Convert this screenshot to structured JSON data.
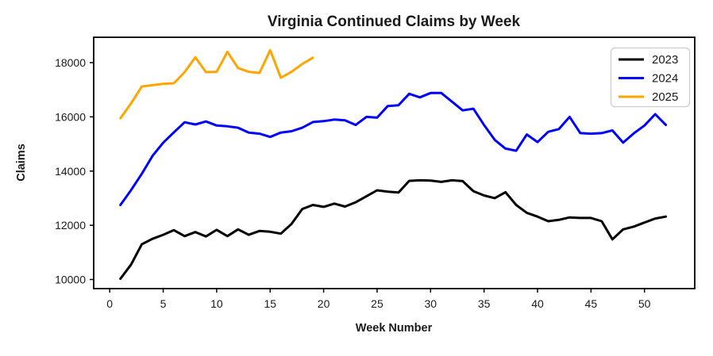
{
  "chart_data": {
    "type": "line",
    "title": "Virginia Continued Claims by Week",
    "xlabel": "Week Number",
    "ylabel": "Claims",
    "xlim": [
      -1.5,
      54.7
    ],
    "ylim": [
      9664,
      18936
    ],
    "xticks": [
      0,
      5,
      10,
      15,
      20,
      25,
      30,
      35,
      40,
      45,
      50
    ],
    "yticks": [
      10000,
      12000,
      14000,
      16000,
      18000
    ],
    "grid": false,
    "legend": {
      "position": "upper right"
    },
    "axis_color": "#000000",
    "series": [
      {
        "name": "2023",
        "color": "#000000",
        "x": [
          1,
          2,
          3,
          4,
          5,
          6,
          7,
          8,
          9,
          10,
          11,
          12,
          13,
          14,
          15,
          16,
          17,
          18,
          19,
          20,
          21,
          22,
          23,
          24,
          25,
          26,
          27,
          28,
          29,
          30,
          31,
          32,
          33,
          34,
          35,
          36,
          37,
          38,
          39,
          40,
          41,
          42,
          43,
          44,
          45,
          46,
          47,
          48,
          49,
          50,
          51,
          52
        ],
        "values": [
          10030,
          10550,
          11300,
          11500,
          11650,
          11820,
          11600,
          11750,
          11590,
          11830,
          11600,
          11850,
          11650,
          11790,
          11760,
          11690,
          12050,
          12600,
          12750,
          12680,
          12800,
          12690,
          12850,
          13070,
          13290,
          13240,
          13210,
          13640,
          13660,
          13650,
          13600,
          13660,
          13630,
          13260,
          13100,
          13000,
          13220,
          12750,
          12460,
          12320,
          12150,
          12200,
          12290,
          12270,
          12270,
          12150,
          11480,
          11850,
          11950,
          12100,
          12250,
          12320
        ]
      },
      {
        "name": "2024",
        "color": "#0000ff",
        "x": [
          1,
          2,
          3,
          4,
          5,
          6,
          7,
          8,
          9,
          10,
          11,
          12,
          13,
          14,
          15,
          16,
          17,
          18,
          19,
          20,
          21,
          22,
          23,
          24,
          25,
          26,
          27,
          28,
          29,
          30,
          31,
          32,
          33,
          34,
          35,
          36,
          37,
          38,
          39,
          40,
          41,
          42,
          43,
          44,
          45,
          46,
          47,
          48,
          49,
          50,
          51,
          52
        ],
        "values": [
          12750,
          13300,
          13900,
          14560,
          15050,
          15430,
          15800,
          15720,
          15830,
          15680,
          15650,
          15600,
          15420,
          15380,
          15260,
          15420,
          15470,
          15600,
          15810,
          15840,
          15900,
          15870,
          15700,
          16000,
          15970,
          16400,
          16430,
          16850,
          16720,
          16880,
          16880,
          16560,
          16240,
          16300,
          15700,
          15150,
          14830,
          14750,
          15350,
          15070,
          15450,
          15550,
          16000,
          15400,
          15380,
          15400,
          15500,
          15050,
          15390,
          15680,
          16100,
          15700
        ]
      },
      {
        "name": "2025",
        "color": "#ffa500",
        "x": [
          1,
          2,
          3,
          4,
          5,
          6,
          7,
          8,
          9,
          10,
          11,
          12,
          13,
          14,
          15,
          16,
          17,
          18,
          19
        ],
        "values": [
          15950,
          16500,
          17120,
          17170,
          17220,
          17240,
          17650,
          18200,
          17650,
          17660,
          18400,
          17800,
          17660,
          17620,
          18460,
          17440,
          17660,
          17950,
          18180
        ]
      }
    ]
  }
}
